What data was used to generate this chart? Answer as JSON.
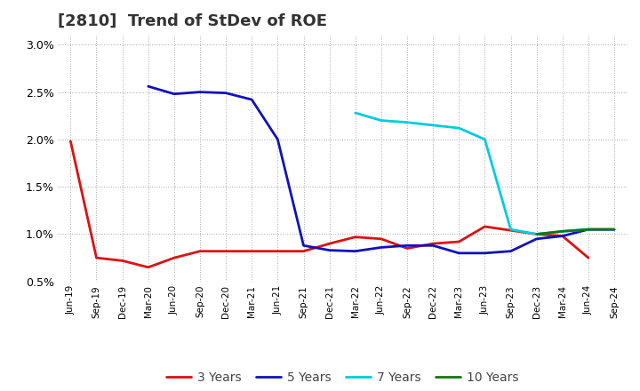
{
  "title": "[2810]  Trend of StDev of ROE",
  "ylim": [
    0.005,
    0.031
  ],
  "yticks": [
    0.005,
    0.01,
    0.015,
    0.02,
    0.025,
    0.03
  ],
  "ytick_labels": [
    "0.5%",
    "1.0%",
    "1.5%",
    "2.0%",
    "2.5%",
    "3.0%"
  ],
  "x_labels": [
    "Jun-19",
    "Sep-19",
    "Dec-19",
    "Mar-20",
    "Jun-20",
    "Sep-20",
    "Dec-20",
    "Mar-21",
    "Jun-21",
    "Sep-21",
    "Dec-21",
    "Mar-22",
    "Jun-22",
    "Sep-22",
    "Dec-22",
    "Mar-23",
    "Jun-23",
    "Sep-23",
    "Dec-23",
    "Mar-24",
    "Jun-24",
    "Sep-24"
  ],
  "series_3y": {
    "label": "3 Years",
    "color": "#dd1111",
    "x": [
      0,
      1,
      2,
      3,
      4,
      5,
      6,
      7,
      8,
      9,
      10,
      11,
      12,
      13,
      14,
      15,
      16,
      17,
      18,
      19,
      20
    ],
    "y": [
      0.0198,
      0.0075,
      0.0072,
      0.0065,
      0.0075,
      0.0082,
      0.0082,
      0.0082,
      0.0082,
      0.0082,
      0.009,
      0.0097,
      0.0095,
      0.0085,
      0.009,
      0.0092,
      0.0108,
      0.0104,
      0.01,
      0.0098,
      0.0075
    ]
  },
  "series_5y": {
    "label": "5 Years",
    "color": "#1111bb",
    "x": [
      3,
      4,
      5,
      6,
      7,
      8,
      9,
      10,
      11,
      12,
      13,
      14,
      15,
      16,
      17,
      18,
      19,
      20,
      21
    ],
    "y": [
      0.0256,
      0.0248,
      0.025,
      0.0249,
      0.0242,
      0.02,
      0.0088,
      0.0083,
      0.0082,
      0.0086,
      0.0088,
      0.0088,
      0.008,
      0.008,
      0.0082,
      0.0095,
      0.0098,
      0.0105,
      0.0105
    ]
  },
  "series_7y": {
    "label": "7 Years",
    "color": "#00ccdd",
    "x": [
      11,
      12,
      13,
      14,
      15,
      16,
      17,
      18,
      19,
      20
    ],
    "y": [
      0.0228,
      0.022,
      0.0218,
      0.0215,
      0.0212,
      0.02,
      0.0105,
      0.01,
      0.0103,
      0.0105
    ]
  },
  "series_10y": {
    "label": "10 Years",
    "color": "#117711",
    "x": [
      18,
      19,
      20,
      21
    ],
    "y": [
      0.01,
      0.0103,
      0.0105,
      0.0105
    ]
  },
  "background_color": "#ffffff",
  "grid_color": "#aaaaaa",
  "title_fontsize": 13,
  "legend_fontsize": 10,
  "line_width": 2.0
}
